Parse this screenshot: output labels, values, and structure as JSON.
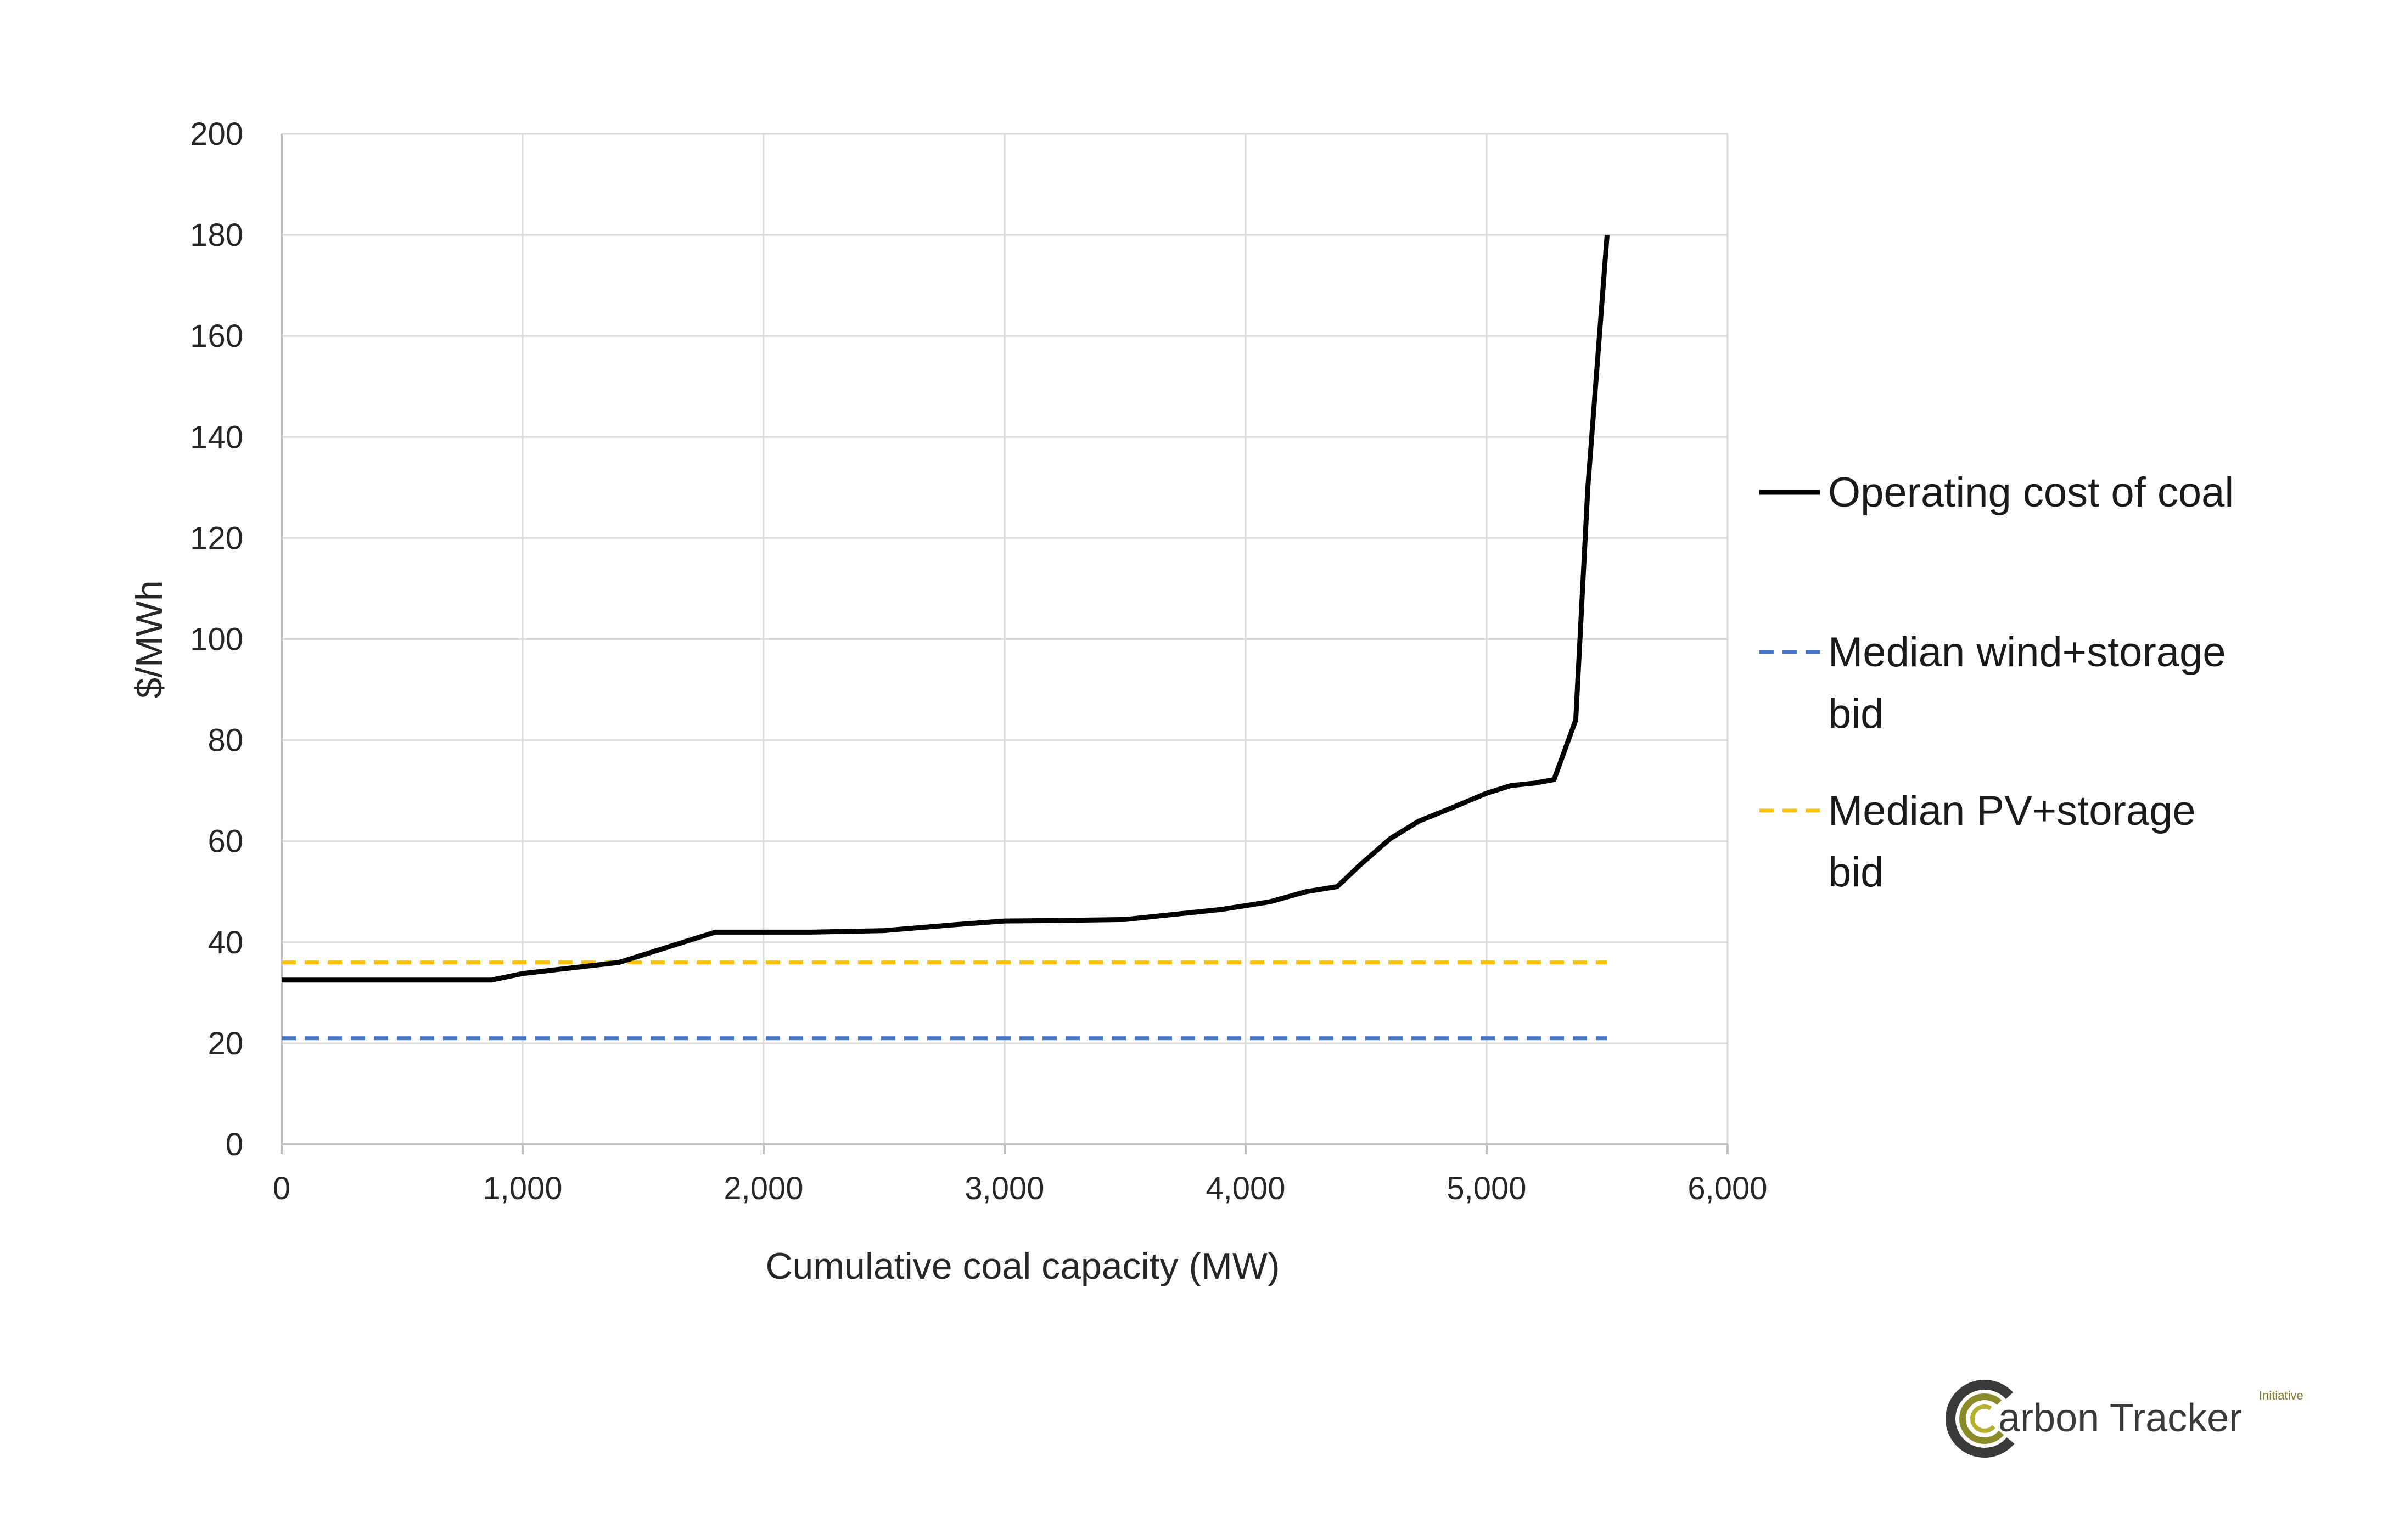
{
  "chart_data": {
    "type": "line",
    "title": "",
    "xlabel": "Cumulative coal capacity (MW)",
    "ylabel": "$/MWh",
    "xlim": [
      0,
      6000
    ],
    "ylim": [
      0,
      200
    ],
    "x_ticks": [
      0,
      1000,
      2000,
      3000,
      4000,
      5000,
      6000
    ],
    "x_tick_labels": [
      "0",
      "1,000",
      "2,000",
      "3,000",
      "4,000",
      "5,000",
      "6,000"
    ],
    "y_ticks": [
      0,
      20,
      40,
      60,
      80,
      100,
      120,
      140,
      160,
      180,
      200
    ],
    "y_tick_labels": [
      "0",
      "20",
      "40",
      "60",
      "80",
      "100",
      "120",
      "140",
      "160",
      "180",
      "200"
    ],
    "grid": true,
    "legend_position": "right",
    "series": [
      {
        "name": "Operating cost of coal",
        "color": "#000000",
        "style": "solid",
        "x": [
          0,
          870,
          1000,
          1400,
          1800,
          2200,
          2500,
          2800,
          3000,
          3200,
          3500,
          3700,
          3900,
          4100,
          4250,
          4380,
          4480,
          4600,
          4720,
          4850,
          5000,
          5100,
          5200,
          5280,
          5370,
          5420,
          5500
        ],
        "y": [
          32.5,
          32.5,
          33.8,
          36,
          42,
          42,
          42.3,
          43.5,
          44.2,
          44.3,
          44.5,
          45.5,
          46.5,
          48,
          50,
          51,
          55.5,
          60.5,
          64,
          66.5,
          69.5,
          71,
          71.5,
          72.2,
          84,
          130,
          180
        ]
      },
      {
        "name": "Median wind+storage bid",
        "color": "#4472C4",
        "style": "dashed",
        "x": [
          0,
          5500
        ],
        "y": [
          21,
          21
        ]
      },
      {
        "name": "Median PV+storage bid",
        "color": "#FFC000",
        "style": "dashed",
        "x": [
          0,
          5500
        ],
        "y": [
          36,
          36
        ]
      }
    ],
    "legend": [
      {
        "series": 0,
        "lines": [
          "Operating cost of coal"
        ]
      },
      {
        "series": 1,
        "lines": [
          "Median wind+storage",
          "bid"
        ]
      },
      {
        "series": 2,
        "lines": [
          "Median PV+storage",
          "bid"
        ]
      }
    ]
  },
  "logo": {
    "text": "arbon Tracker",
    "superscript": "Initiative",
    "ring_colors": [
      "#3a3a3a",
      "#8a8a2a",
      "#b5b030"
    ]
  }
}
